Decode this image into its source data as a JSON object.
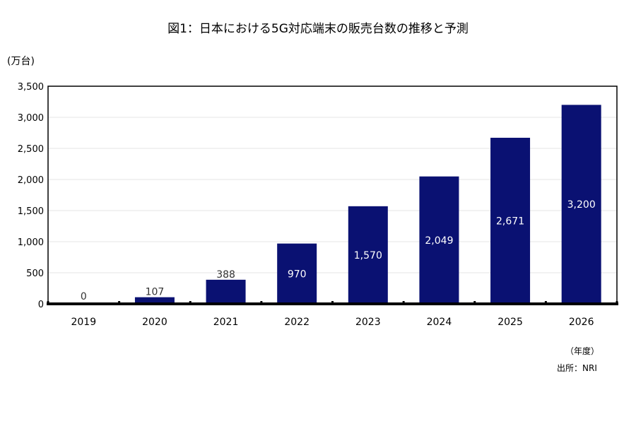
{
  "chart_data": {
    "type": "bar",
    "title": "図1：日本における5G対応端末の販売台数の推移と予測",
    "ylabel": "(万台)",
    "xlabel": "（年度）",
    "source": "出所：NRI",
    "categories": [
      "2019",
      "2020",
      "2021",
      "2022",
      "2023",
      "2024",
      "2025",
      "2026"
    ],
    "values": [
      0,
      107,
      388,
      970,
      1570,
      2049,
      2671,
      3200
    ],
    "value_labels": [
      "0",
      "107",
      "388",
      "970",
      "1,570",
      "2,049",
      "2,671",
      "3,200"
    ],
    "ylim": [
      0,
      3500
    ],
    "yticks": [
      0,
      500,
      1000,
      1500,
      2000,
      2500,
      3000,
      3500
    ],
    "ytick_labels": [
      "0",
      "500",
      "1,000",
      "1,500",
      "2,000",
      "2,500",
      "3,000",
      "3,500"
    ],
    "grid": true,
    "legend": "none",
    "bar_color": "#0a1172",
    "inside_label_color": "#ffffff",
    "outside_label_color": "#333333"
  }
}
